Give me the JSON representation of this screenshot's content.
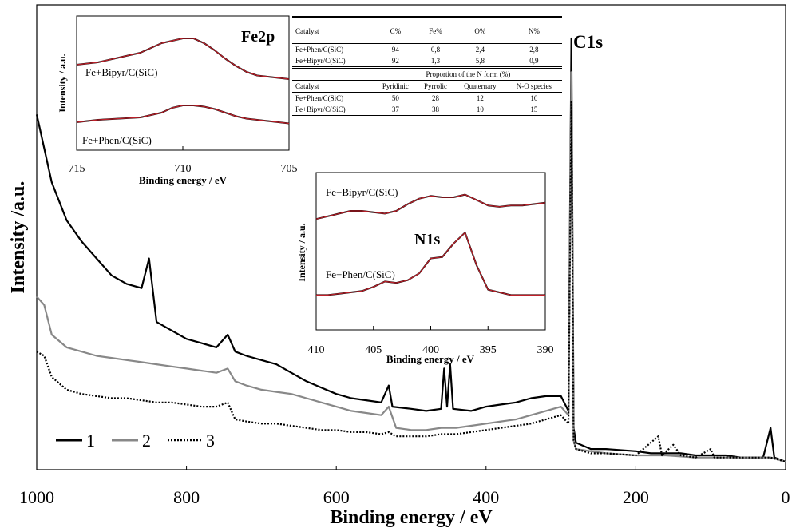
{
  "chart_data": [
    {
      "type": "line",
      "id": "main",
      "xlabel": "Binding energy / eV",
      "ylabel": "Intensity /a.u.",
      "xlim": [
        1000,
        0
      ],
      "xticks": [
        1000,
        800,
        600,
        400,
        200,
        0
      ],
      "ylim": [
        0,
        100
      ],
      "peak_label": "C1s",
      "legend": {
        "placement": "bottom-left",
        "entries": [
          "1",
          "2",
          "3"
        ]
      },
      "series": [
        {
          "name": "1",
          "color": "#000000",
          "style": "solid",
          "points": [
            [
              1000,
              82
            ],
            [
              980,
              66
            ],
            [
              960,
              57
            ],
            [
              940,
              52
            ],
            [
              920,
              48
            ],
            [
              900,
              44
            ],
            [
              880,
              42
            ],
            [
              860,
              41
            ],
            [
              850,
              48
            ],
            [
              840,
              33
            ],
            [
              820,
              31
            ],
            [
              800,
              29
            ],
            [
              780,
              28
            ],
            [
              760,
              27
            ],
            [
              745,
              30
            ],
            [
              735,
              26
            ],
            [
              720,
              25
            ],
            [
              700,
              24
            ],
            [
              680,
              23
            ],
            [
              660,
              21
            ],
            [
              640,
              19
            ],
            [
              620,
              17.5
            ],
            [
              600,
              16
            ],
            [
              580,
              15
            ],
            [
              560,
              14.5
            ],
            [
              540,
              14
            ],
            [
              530,
              18
            ],
            [
              525,
              13
            ],
            [
              500,
              12.5
            ],
            [
              480,
              12
            ],
            [
              460,
              12.5
            ],
            [
              456,
              22
            ],
            [
              452,
              13
            ],
            [
              448,
              23
            ],
            [
              444,
              12.5
            ],
            [
              420,
              12
            ],
            [
              400,
              13
            ],
            [
              380,
              13.5
            ],
            [
              360,
              14
            ],
            [
              340,
              15
            ],
            [
              320,
              15.5
            ],
            [
              300,
              15.5
            ],
            [
              290,
              12
            ],
            [
              286,
              100
            ],
            [
              283,
              8
            ],
            [
              280,
              4.5
            ],
            [
              260,
              3
            ],
            [
              240,
              3
            ],
            [
              200,
              2.5
            ],
            [
              180,
              2
            ],
            [
              160,
              2
            ],
            [
              140,
              2
            ],
            [
              120,
              1.5
            ],
            [
              100,
              1.5
            ],
            [
              80,
              1.5
            ],
            [
              60,
              1
            ],
            [
              30,
              1
            ],
            [
              20,
              8
            ],
            [
              15,
              1
            ],
            [
              0,
              0
            ]
          ]
        },
        {
          "name": "2",
          "color": "#888888",
          "style": "solid",
          "points": [
            [
              1000,
              39
            ],
            [
              990,
              37
            ],
            [
              980,
              30
            ],
            [
              960,
              27
            ],
            [
              940,
              26
            ],
            [
              920,
              25
            ],
            [
              900,
              24.5
            ],
            [
              880,
              24
            ],
            [
              860,
              23.5
            ],
            [
              840,
              23
            ],
            [
              820,
              22.5
            ],
            [
              800,
              22
            ],
            [
              780,
              21.5
            ],
            [
              760,
              21
            ],
            [
              745,
              22
            ],
            [
              735,
              19
            ],
            [
              720,
              18
            ],
            [
              700,
              17
            ],
            [
              680,
              16.5
            ],
            [
              660,
              16
            ],
            [
              640,
              15
            ],
            [
              620,
              14
            ],
            [
              600,
              13
            ],
            [
              580,
              12
            ],
            [
              560,
              11.5
            ],
            [
              540,
              11
            ],
            [
              530,
              13
            ],
            [
              520,
              8
            ],
            [
              500,
              7.5
            ],
            [
              480,
              7.5
            ],
            [
              460,
              8
            ],
            [
              440,
              8
            ],
            [
              420,
              8.5
            ],
            [
              400,
              9
            ],
            [
              380,
              9.5
            ],
            [
              360,
              10
            ],
            [
              340,
              11
            ],
            [
              320,
              12
            ],
            [
              300,
              13
            ],
            [
              290,
              11
            ],
            [
              286,
              92
            ],
            [
              283,
              5
            ],
            [
              280,
              3
            ],
            [
              260,
              2.5
            ],
            [
              240,
              2
            ],
            [
              200,
              1.5
            ],
            [
              160,
              1.5
            ],
            [
              120,
              1
            ],
            [
              80,
              1
            ],
            [
              40,
              1
            ],
            [
              20,
              1
            ],
            [
              0,
              0
            ]
          ]
        },
        {
          "name": "3",
          "color": "#000000",
          "style": "dotted",
          "points": [
            [
              1000,
              26
            ],
            [
              990,
              25
            ],
            [
              980,
              20
            ],
            [
              960,
              17
            ],
            [
              940,
              16
            ],
            [
              920,
              15.5
            ],
            [
              900,
              15
            ],
            [
              880,
              15
            ],
            [
              860,
              14.5
            ],
            [
              840,
              14
            ],
            [
              820,
              14
            ],
            [
              800,
              13.5
            ],
            [
              780,
              13
            ],
            [
              760,
              13
            ],
            [
              745,
              14
            ],
            [
              735,
              10
            ],
            [
              720,
              9.5
            ],
            [
              700,
              9
            ],
            [
              680,
              9
            ],
            [
              660,
              8.5
            ],
            [
              640,
              8
            ],
            [
              620,
              7.5
            ],
            [
              600,
              7.5
            ],
            [
              580,
              7
            ],
            [
              560,
              7
            ],
            [
              540,
              6.5
            ],
            [
              530,
              7
            ],
            [
              520,
              6
            ],
            [
              500,
              6
            ],
            [
              480,
              6
            ],
            [
              460,
              6.5
            ],
            [
              440,
              6.5
            ],
            [
              420,
              7
            ],
            [
              400,
              7.5
            ],
            [
              380,
              8
            ],
            [
              360,
              8.5
            ],
            [
              340,
              9
            ],
            [
              320,
              10
            ],
            [
              300,
              11
            ],
            [
              290,
              9
            ],
            [
              286,
              85
            ],
            [
              283,
              5
            ],
            [
              280,
              3
            ],
            [
              260,
              2
            ],
            [
              240,
              2
            ],
            [
              200,
              1.5
            ],
            [
              170,
              6
            ],
            [
              165,
              1.5
            ],
            [
              150,
              4
            ],
            [
              140,
              1.5
            ],
            [
              120,
              1
            ],
            [
              100,
              3
            ],
            [
              95,
              1
            ],
            [
              60,
              1
            ],
            [
              40,
              1
            ],
            [
              20,
              1
            ],
            [
              0,
              0
            ]
          ]
        }
      ]
    },
    {
      "type": "line",
      "id": "fe2p",
      "title": "Fe2p",
      "xlabel": "Binding energy / eV",
      "ylabel": "Intensity / a.u.",
      "xlim": [
        715,
        705
      ],
      "xticks": [
        715,
        710,
        705
      ],
      "ylim": [
        0,
        100
      ],
      "series": [
        {
          "name": "Fe+Bipyr/C(SiC)",
          "color": "#000000",
          "points": [
            [
              715,
              70
            ],
            [
              714,
              72
            ],
            [
              713,
              76
            ],
            [
              712,
              80
            ],
            [
              711.5,
              84
            ],
            [
              711,
              88
            ],
            [
              710.5,
              90
            ],
            [
              710,
              92
            ],
            [
              709.5,
              92
            ],
            [
              709,
              88
            ],
            [
              708.5,
              82
            ],
            [
              708,
              75
            ],
            [
              707.5,
              69
            ],
            [
              707,
              64
            ],
            [
              706.5,
              61
            ],
            [
              706,
              60
            ],
            [
              705.5,
              59
            ],
            [
              705,
              58
            ]
          ]
        },
        {
          "name": "Fe+Phen/C(SiC)",
          "color": "#000000",
          "points": [
            [
              715,
              22
            ],
            [
              714,
              24
            ],
            [
              713,
              25
            ],
            [
              712,
              26
            ],
            [
              711.5,
              28
            ],
            [
              711,
              30
            ],
            [
              710.5,
              34
            ],
            [
              710,
              36
            ],
            [
              709.5,
              36
            ],
            [
              709,
              35
            ],
            [
              708.5,
              33
            ],
            [
              708,
              30
            ],
            [
              707.5,
              27
            ],
            [
              707,
              25
            ],
            [
              706.5,
              24
            ],
            [
              706,
              23
            ],
            [
              705.5,
              22
            ],
            [
              705,
              21
            ]
          ]
        }
      ]
    },
    {
      "type": "line",
      "id": "n1s",
      "title": "N1s",
      "xlabel": "Binding energy  / eV",
      "ylabel": "Intensity / a.u.",
      "xlim": [
        410,
        390
      ],
      "xticks": [
        410,
        405,
        400,
        395,
        390
      ],
      "ylim": [
        0,
        100
      ],
      "series": [
        {
          "name": "Fe+Bipyr/C(SiC)",
          "color": "#000000",
          "points": [
            [
              410,
              74
            ],
            [
              409,
              76
            ],
            [
              408,
              78
            ],
            [
              407,
              80
            ],
            [
              406,
              80
            ],
            [
              405,
              79
            ],
            [
              404,
              78
            ],
            [
              403,
              80
            ],
            [
              402,
              85
            ],
            [
              401,
              89
            ],
            [
              400,
              91
            ],
            [
              399,
              90
            ],
            [
              398,
              90
            ],
            [
              397,
              92
            ],
            [
              396,
              88
            ],
            [
              395,
              84
            ],
            [
              394,
              83
            ],
            [
              393,
              84
            ],
            [
              392,
              84
            ],
            [
              391,
              85
            ],
            [
              390,
              86
            ]
          ]
        },
        {
          "name": "Fe+Phen/C(SiC)",
          "color": "#000000",
          "points": [
            [
              410,
              18
            ],
            [
              409,
              18
            ],
            [
              408,
              19
            ],
            [
              407,
              20
            ],
            [
              406,
              21
            ],
            [
              405,
              24
            ],
            [
              404,
              28
            ],
            [
              403,
              27
            ],
            [
              402,
              29
            ],
            [
              401,
              34
            ],
            [
              400,
              45
            ],
            [
              399,
              46
            ],
            [
              398,
              56
            ],
            [
              397,
              64
            ],
            [
              396,
              40
            ],
            [
              395,
              22
            ],
            [
              394,
              20
            ],
            [
              393,
              18
            ],
            [
              392,
              18
            ],
            [
              391,
              18
            ],
            [
              390,
              18
            ]
          ]
        }
      ]
    }
  ],
  "table": {
    "header1": [
      "Catalyst",
      "C%",
      "Fe%",
      "O%",
      "N%"
    ],
    "rows1": [
      [
        "Fe+Phen/C(SiC)",
        "94",
        "0,8",
        "2,4",
        "2,8"
      ],
      [
        "Fe+Bipyr/C(SiC)",
        "92",
        "1,3",
        "5,8",
        "0,9"
      ]
    ],
    "subtitle": "Proportion of the N form (%)",
    "header2": [
      "Catalyst",
      "Pyridinic",
      "Pyrrolic",
      "Quaternary",
      "N-O species"
    ],
    "rows2": [
      [
        "Fe+Phen/C(SiC)",
        "50",
        "28",
        "12",
        "10"
      ],
      [
        "Fe+Bipyr/C(SiC)",
        "37",
        "38",
        "10",
        "15"
      ]
    ]
  }
}
